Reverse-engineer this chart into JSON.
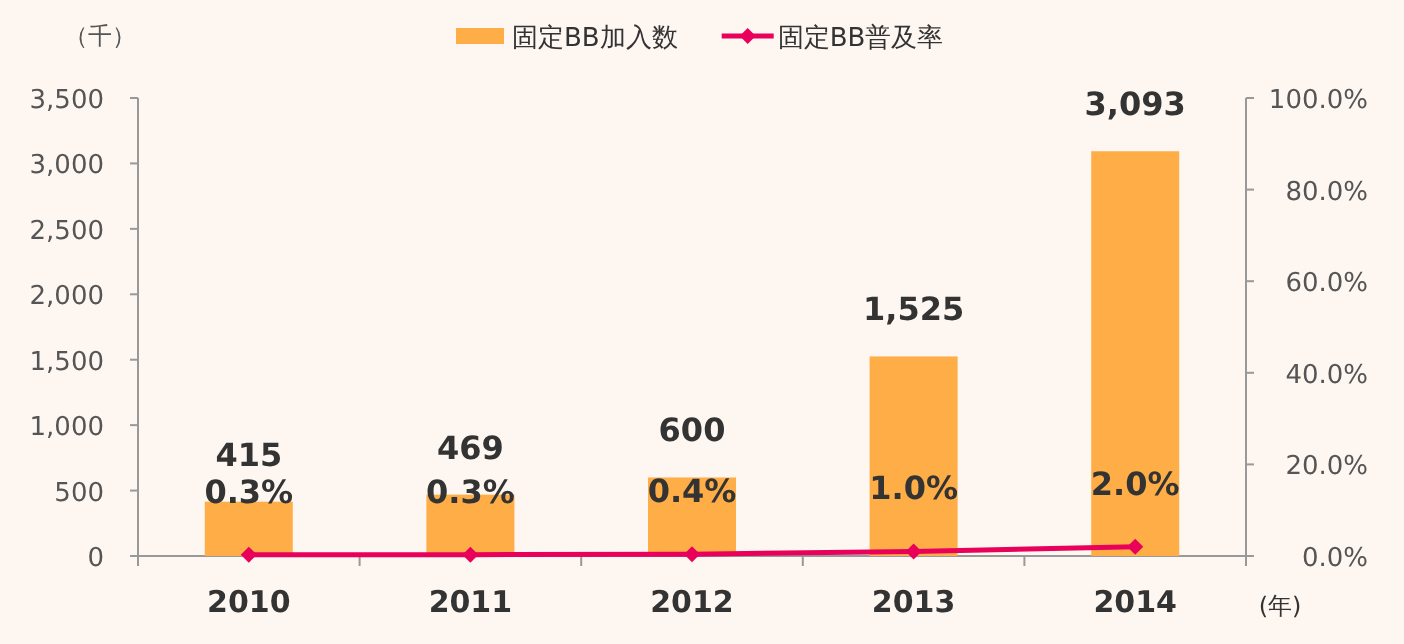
{
  "chart_data": {
    "type": "bar",
    "categories": [
      "2010",
      "2011",
      "2012",
      "2013",
      "2014"
    ],
    "series": [
      {
        "name": "固定BB加入数",
        "color": "#ffad47",
        "values": [
          415,
          469,
          600,
          1525,
          3093
        ],
        "value_labels": [
          "415",
          "469",
          "600",
          "1,525",
          "3,093"
        ]
      },
      {
        "name": "固定BB普及率",
        "type": "line",
        "axis": "y2",
        "color": "#e8005a",
        "marker": "diamond",
        "values": [
          0.3,
          0.3,
          0.4,
          1.0,
          2.0
        ],
        "value_labels": [
          "0.3%",
          "0.3%",
          "0.4%",
          "1.0%",
          "2.0%"
        ]
      }
    ],
    "ylabel": "（千）",
    "xlabel": "(年)",
    "ylim": [
      0,
      3500
    ],
    "yticks": [
      0,
      500,
      {
        "value": 1000,
        "label": "1,000"
      },
      {
        "value": 1500,
        "label": "1,500"
      },
      {
        "value": 2000,
        "label": "2,000"
      },
      {
        "value": 2500,
        "label": "2,500"
      },
      {
        "value": 3000,
        "label": "3,000"
      },
      {
        "value": 3500,
        "label": "3,500"
      }
    ],
    "y2lim": [
      0,
      100
    ],
    "y2ticks": [
      {
        "value": 0,
        "label": "0.0%"
      },
      {
        "value": 20,
        "label": "20.0%"
      },
      {
        "value": 40,
        "label": "40.0%"
      },
      {
        "value": 60,
        "label": "60.0%"
      },
      {
        "value": 80,
        "label": "80.0%"
      },
      {
        "value": 100,
        "label": "100.0%"
      }
    ],
    "grid": false,
    "legend": "top"
  }
}
